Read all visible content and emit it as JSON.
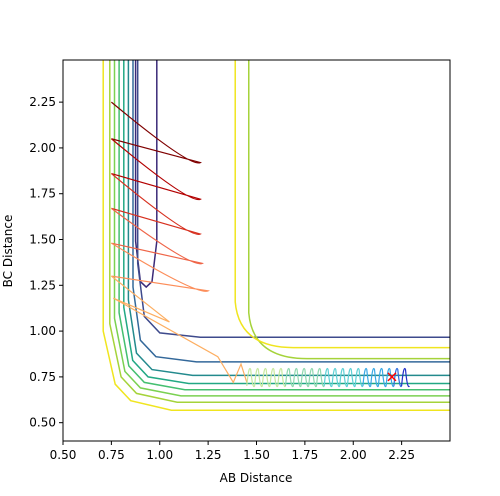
{
  "chart_data": {
    "type": "contour",
    "title": "",
    "xlabel": "AB Distance",
    "ylabel": "BC Distance",
    "xlim": [
      0.5,
      2.5
    ],
    "ylim": [
      0.4,
      2.48
    ],
    "xticks": [
      "0.50",
      "0.75",
      "1.00",
      "1.25",
      "1.50",
      "1.75",
      "2.00",
      "2.25"
    ],
    "yticks": [
      "0.50",
      "0.75",
      "1.00",
      "1.25",
      "1.50",
      "1.75",
      "2.00",
      "2.25"
    ],
    "grid": false,
    "legend": "none",
    "contour_levels": [
      {
        "color": "#3b2a78",
        "corner": [
          0.93,
          1.24
        ],
        "x_branch_end": 1.04,
        "y_branch_end": 0.0
      },
      {
        "color": "#3e4a8c",
        "corner": [
          0.91,
          1.02
        ],
        "x_branch_end": 1.13,
        "y_branch_end": 0.0
      },
      {
        "color": "#33689a",
        "corner": [
          0.89,
          0.89
        ],
        "x_branch_end": 1.23,
        "y_branch_end": 0.0
      },
      {
        "color": "#238a8d",
        "corner": [
          0.87,
          0.82
        ],
        "x_branch_end": 1.38,
        "y_branch_end": 0.0
      },
      {
        "color": "#22a884",
        "corner": [
          0.85,
          0.78
        ],
        "x_branch_end": 1.48,
        "y_branch_end": 0.0
      },
      {
        "color": "#44bf70",
        "corner": [
          0.83,
          0.75
        ],
        "x_branch_end": 1.6,
        "y_branch_end": 0.0
      },
      {
        "color": "#7ad151",
        "corner": [
          0.81,
          0.72
        ],
        "x_branch_end": 1.7,
        "y_branch_end": 0.0
      },
      {
        "color": "#a5d33a",
        "corner": [
          0.79,
          0.69
        ],
        "x_branch_end": 1.8,
        "y_branch_end": 0.0
      },
      {
        "color": "#f0e51f",
        "corner": [
          0.76,
          0.65
        ],
        "x_branch_end": 1.92,
        "y_branch_end": 0.0
      }
    ],
    "trajectory": {
      "start": [
        0.75,
        2.25
      ],
      "end": [
        2.2,
        0.75
      ],
      "end_marker": "x",
      "end_marker_color": "#ff0000"
    }
  }
}
